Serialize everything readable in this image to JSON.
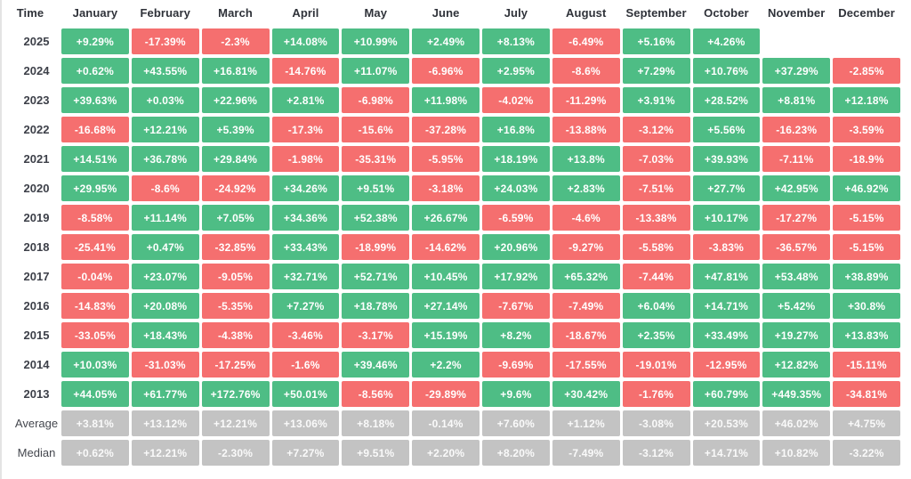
{
  "table": {
    "time_header": "Time",
    "months": [
      "January",
      "February",
      "March",
      "April",
      "May",
      "June",
      "July",
      "August",
      "September",
      "October",
      "November",
      "December"
    ],
    "colors": {
      "positive": "#4ebd85",
      "negative": "#f56f6f",
      "neutral": "#c3c3c3",
      "header_text": "#2f3239",
      "cell_text": "#ffffff"
    },
    "rows": [
      {
        "label": "2025",
        "type": "year",
        "values": [
          "+9.29%",
          "-17.39%",
          "-2.3%",
          "+14.08%",
          "+10.99%",
          "+2.49%",
          "+8.13%",
          "-6.49%",
          "+5.16%",
          "+4.26%",
          "",
          ""
        ]
      },
      {
        "label": "2024",
        "type": "year",
        "values": [
          "+0.62%",
          "+43.55%",
          "+16.81%",
          "-14.76%",
          "+11.07%",
          "-6.96%",
          "+2.95%",
          "-8.6%",
          "+7.29%",
          "+10.76%",
          "+37.29%",
          "-2.85%"
        ]
      },
      {
        "label": "2023",
        "type": "year",
        "values": [
          "+39.63%",
          "+0.03%",
          "+22.96%",
          "+2.81%",
          "-6.98%",
          "+11.98%",
          "-4.02%",
          "-11.29%",
          "+3.91%",
          "+28.52%",
          "+8.81%",
          "+12.18%"
        ]
      },
      {
        "label": "2022",
        "type": "year",
        "values": [
          "-16.68%",
          "+12.21%",
          "+5.39%",
          "-17.3%",
          "-15.6%",
          "-37.28%",
          "+16.8%",
          "-13.88%",
          "-3.12%",
          "+5.56%",
          "-16.23%",
          "-3.59%"
        ]
      },
      {
        "label": "2021",
        "type": "year",
        "values": [
          "+14.51%",
          "+36.78%",
          "+29.84%",
          "-1.98%",
          "-35.31%",
          "-5.95%",
          "+18.19%",
          "+13.8%",
          "-7.03%",
          "+39.93%",
          "-7.11%",
          "-18.9%"
        ]
      },
      {
        "label": "2020",
        "type": "year",
        "values": [
          "+29.95%",
          "-8.6%",
          "-24.92%",
          "+34.26%",
          "+9.51%",
          "-3.18%",
          "+24.03%",
          "+2.83%",
          "-7.51%",
          "+27.7%",
          "+42.95%",
          "+46.92%"
        ]
      },
      {
        "label": "2019",
        "type": "year",
        "values": [
          "-8.58%",
          "+11.14%",
          "+7.05%",
          "+34.36%",
          "+52.38%",
          "+26.67%",
          "-6.59%",
          "-4.6%",
          "-13.38%",
          "+10.17%",
          "-17.27%",
          "-5.15%"
        ]
      },
      {
        "label": "2018",
        "type": "year",
        "values": [
          "-25.41%",
          "+0.47%",
          "-32.85%",
          "+33.43%",
          "-18.99%",
          "-14.62%",
          "+20.96%",
          "-9.27%",
          "-5.58%",
          "-3.83%",
          "-36.57%",
          "-5.15%"
        ]
      },
      {
        "label": "2017",
        "type": "year",
        "values": [
          "-0.04%",
          "+23.07%",
          "-9.05%",
          "+32.71%",
          "+52.71%",
          "+10.45%",
          "+17.92%",
          "+65.32%",
          "-7.44%",
          "+47.81%",
          "+53.48%",
          "+38.89%"
        ]
      },
      {
        "label": "2016",
        "type": "year",
        "values": [
          "-14.83%",
          "+20.08%",
          "-5.35%",
          "+7.27%",
          "+18.78%",
          "+27.14%",
          "-7.67%",
          "-7.49%",
          "+6.04%",
          "+14.71%",
          "+5.42%",
          "+30.8%"
        ]
      },
      {
        "label": "2015",
        "type": "year",
        "values": [
          "-33.05%",
          "+18.43%",
          "-4.38%",
          "-3.46%",
          "-3.17%",
          "+15.19%",
          "+8.2%",
          "-18.67%",
          "+2.35%",
          "+33.49%",
          "+19.27%",
          "+13.83%"
        ]
      },
      {
        "label": "2014",
        "type": "year",
        "values": [
          "+10.03%",
          "-31.03%",
          "-17.25%",
          "-1.6%",
          "+39.46%",
          "+2.2%",
          "-9.69%",
          "-17.55%",
          "-19.01%",
          "-12.95%",
          "+12.82%",
          "-15.11%"
        ]
      },
      {
        "label": "2013",
        "type": "year",
        "values": [
          "+44.05%",
          "+61.77%",
          "+172.76%",
          "+50.01%",
          "-8.56%",
          "-29.89%",
          "+9.6%",
          "+30.42%",
          "-1.76%",
          "+60.79%",
          "+449.35%",
          "-34.81%"
        ]
      },
      {
        "label": "Average",
        "type": "summary",
        "values": [
          "+3.81%",
          "+13.12%",
          "+12.21%",
          "+13.06%",
          "+8.18%",
          "-0.14%",
          "+7.60%",
          "+1.12%",
          "-3.08%",
          "+20.53%",
          "+46.02%",
          "+4.75%"
        ]
      },
      {
        "label": "Median",
        "type": "summary",
        "values": [
          "+0.62%",
          "+12.21%",
          "-2.30%",
          "+7.27%",
          "+9.51%",
          "+2.20%",
          "+8.20%",
          "-7.49%",
          "-3.12%",
          "+14.71%",
          "+10.82%",
          "-3.22%"
        ]
      }
    ]
  },
  "chart_data": {
    "type": "heatmap",
    "columns": [
      "January",
      "February",
      "March",
      "April",
      "May",
      "June",
      "July",
      "August",
      "September",
      "October",
      "November",
      "December"
    ],
    "rows": [
      "2025",
      "2024",
      "2023",
      "2022",
      "2021",
      "2020",
      "2019",
      "2018",
      "2017",
      "2016",
      "2015",
      "2014",
      "2013",
      "Average",
      "Median"
    ],
    "values_pct": [
      [
        9.29,
        -17.39,
        -2.3,
        14.08,
        10.99,
        2.49,
        8.13,
        -6.49,
        5.16,
        4.26,
        null,
        null
      ],
      [
        0.62,
        43.55,
        16.81,
        -14.76,
        11.07,
        -6.96,
        2.95,
        -8.6,
        7.29,
        10.76,
        37.29,
        -2.85
      ],
      [
        39.63,
        0.03,
        22.96,
        2.81,
        -6.98,
        11.98,
        -4.02,
        -11.29,
        3.91,
        28.52,
        8.81,
        12.18
      ],
      [
        -16.68,
        12.21,
        5.39,
        -17.3,
        -15.6,
        -37.28,
        16.8,
        -13.88,
        -3.12,
        5.56,
        -16.23,
        -3.59
      ],
      [
        14.51,
        36.78,
        29.84,
        -1.98,
        -35.31,
        -5.95,
        18.19,
        13.8,
        -7.03,
        39.93,
        -7.11,
        -18.9
      ],
      [
        29.95,
        -8.6,
        -24.92,
        34.26,
        9.51,
        -3.18,
        24.03,
        2.83,
        -7.51,
        27.7,
        42.95,
        46.92
      ],
      [
        -8.58,
        11.14,
        7.05,
        34.36,
        52.38,
        26.67,
        -6.59,
        -4.6,
        -13.38,
        10.17,
        -17.27,
        -5.15
      ],
      [
        -25.41,
        0.47,
        -32.85,
        33.43,
        -18.99,
        -14.62,
        20.96,
        -9.27,
        -5.58,
        -3.83,
        -36.57,
        -5.15
      ],
      [
        -0.04,
        23.07,
        -9.05,
        32.71,
        52.71,
        10.45,
        17.92,
        65.32,
        -7.44,
        47.81,
        53.48,
        38.89
      ],
      [
        -14.83,
        20.08,
        -5.35,
        7.27,
        18.78,
        27.14,
        -7.67,
        -7.49,
        6.04,
        14.71,
        5.42,
        30.8
      ],
      [
        -33.05,
        18.43,
        -4.38,
        -3.46,
        -3.17,
        15.19,
        8.2,
        -18.67,
        2.35,
        33.49,
        19.27,
        13.83
      ],
      [
        10.03,
        -31.03,
        -17.25,
        -1.6,
        39.46,
        2.2,
        -9.69,
        -17.55,
        -19.01,
        -12.95,
        12.82,
        -15.11
      ],
      [
        44.05,
        61.77,
        172.76,
        50.01,
        -8.56,
        -29.89,
        9.6,
        30.42,
        -1.76,
        60.79,
        449.35,
        -34.81
      ],
      [
        3.81,
        13.12,
        12.21,
        13.06,
        8.18,
        -0.14,
        7.6,
        1.12,
        -3.08,
        20.53,
        46.02,
        4.75
      ],
      [
        0.62,
        12.21,
        -2.3,
        7.27,
        9.51,
        2.2,
        8.2,
        -7.49,
        -3.12,
        14.71,
        10.82,
        -3.22
      ]
    ],
    "color_coding": {
      "green": "positive monthly return",
      "red": "negative monthly return",
      "gray": "summary rows (Average, Median)"
    },
    "legend_position": "none",
    "grid": false
  }
}
